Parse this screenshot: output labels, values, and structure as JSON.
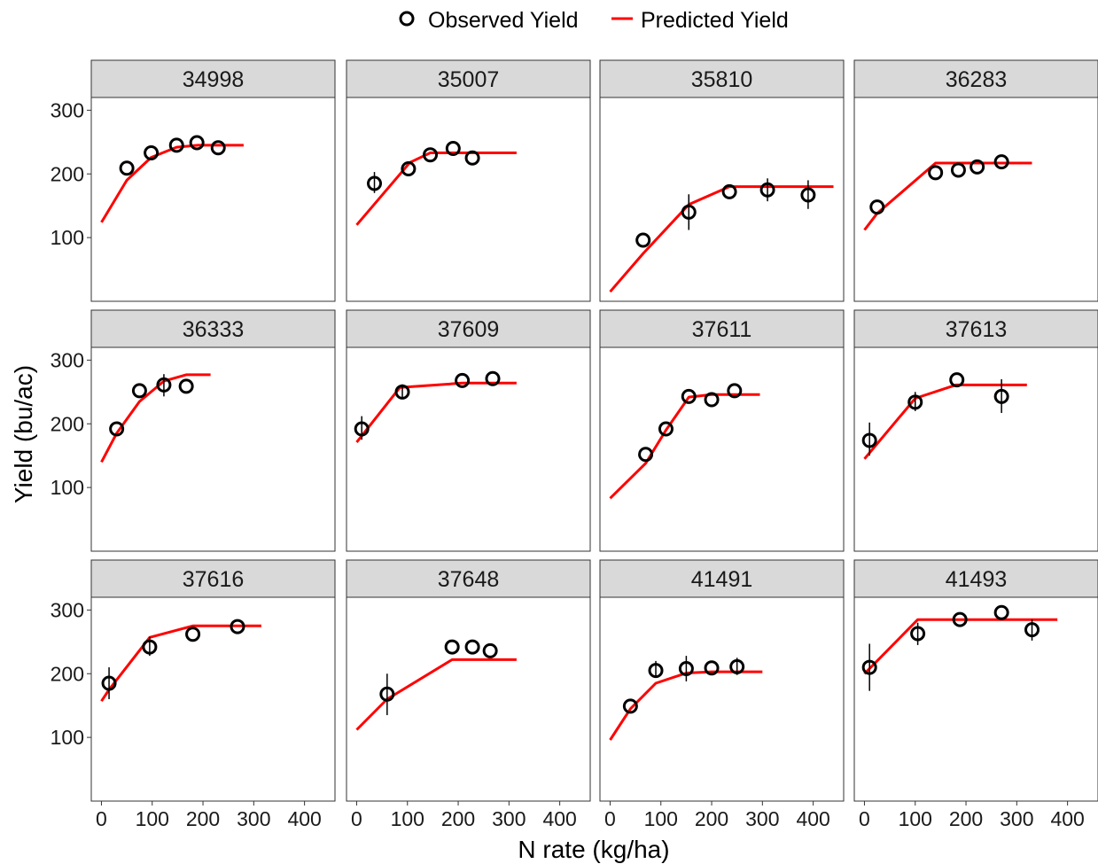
{
  "chart_data": {
    "type": "scatter",
    "xlabel": "N rate (kg/ha)",
    "ylabel": "Yield (bu/ac)",
    "xlim": [
      -20,
      460
    ],
    "ylim": [
      0,
      320
    ],
    "x_ticks": [
      0,
      100,
      200,
      300,
      400
    ],
    "y_ticks": [
      100,
      200,
      300
    ],
    "grid": false,
    "legend": {
      "position": "top",
      "entries": [
        {
          "label": "Observed Yield",
          "marker": "open-circle",
          "color": "#000000"
        },
        {
          "label": "Predicted Yield",
          "marker": "line",
          "color": "#ff0000"
        }
      ]
    },
    "panels": [
      {
        "id": "34998",
        "observed": [
          {
            "x": 50,
            "y": 209
          },
          {
            "x": 98,
            "y": 233
          },
          {
            "x": 148,
            "y": 245
          },
          {
            "x": 188,
            "y": 249
          },
          {
            "x": 230,
            "y": 241
          }
        ],
        "errors": [],
        "predicted": [
          {
            "x": 0,
            "y": 124
          },
          {
            "x": 50,
            "y": 190
          },
          {
            "x": 98,
            "y": 226
          },
          {
            "x": 148,
            "y": 242
          },
          {
            "x": 190,
            "y": 245
          },
          {
            "x": 280,
            "y": 245
          }
        ]
      },
      {
        "id": "35007",
        "observed": [
          {
            "x": 35,
            "y": 185
          },
          {
            "x": 102,
            "y": 208
          },
          {
            "x": 145,
            "y": 230
          },
          {
            "x": 190,
            "y": 240
          },
          {
            "x": 228,
            "y": 225
          }
        ],
        "errors": [
          {
            "x": 35,
            "lo": 170,
            "hi": 203
          }
        ],
        "predicted": [
          {
            "x": 0,
            "y": 120
          },
          {
            "x": 105,
            "y": 218
          },
          {
            "x": 145,
            "y": 233
          },
          {
            "x": 315,
            "y": 233
          }
        ]
      },
      {
        "id": "35810",
        "observed": [
          {
            "x": 65,
            "y": 96
          },
          {
            "x": 155,
            "y": 140
          },
          {
            "x": 235,
            "y": 172
          },
          {
            "x": 310,
            "y": 175
          },
          {
            "x": 390,
            "y": 167
          }
        ],
        "errors": [
          {
            "x": 155,
            "lo": 112,
            "hi": 168
          },
          {
            "x": 310,
            "lo": 157,
            "hi": 193
          },
          {
            "x": 390,
            "lo": 145,
            "hi": 190
          }
        ],
        "predicted": [
          {
            "x": 0,
            "y": 15
          },
          {
            "x": 65,
            "y": 75
          },
          {
            "x": 155,
            "y": 152
          },
          {
            "x": 235,
            "y": 180
          },
          {
            "x": 440,
            "y": 180
          }
        ]
      },
      {
        "id": "36283",
        "observed": [
          {
            "x": 25,
            "y": 148
          },
          {
            "x": 140,
            "y": 202
          },
          {
            "x": 185,
            "y": 206
          },
          {
            "x": 222,
            "y": 211
          },
          {
            "x": 270,
            "y": 219
          }
        ],
        "errors": [],
        "predicted": [
          {
            "x": 0,
            "y": 112
          },
          {
            "x": 25,
            "y": 138
          },
          {
            "x": 140,
            "y": 217
          },
          {
            "x": 330,
            "y": 217
          }
        ]
      },
      {
        "id": "36333",
        "observed": [
          {
            "x": 30,
            "y": 192
          },
          {
            "x": 75,
            "y": 252
          },
          {
            "x": 123,
            "y": 261
          },
          {
            "x": 167,
            "y": 259
          }
        ],
        "errors": [
          {
            "x": 123,
            "lo": 243,
            "hi": 278
          }
        ],
        "predicted": [
          {
            "x": 0,
            "y": 140
          },
          {
            "x": 30,
            "y": 185
          },
          {
            "x": 75,
            "y": 235
          },
          {
            "x": 123,
            "y": 267
          },
          {
            "x": 167,
            "y": 277
          },
          {
            "x": 215,
            "y": 277
          }
        ]
      },
      {
        "id": "37609",
        "observed": [
          {
            "x": 10,
            "y": 192
          },
          {
            "x": 90,
            "y": 250
          },
          {
            "x": 208,
            "y": 268
          },
          {
            "x": 268,
            "y": 271
          }
        ],
        "errors": [
          {
            "x": 10,
            "lo": 175,
            "hi": 212
          },
          {
            "x": 90,
            "lo": 240,
            "hi": 262
          }
        ],
        "predicted": [
          {
            "x": 0,
            "y": 171
          },
          {
            "x": 85,
            "y": 257
          },
          {
            "x": 208,
            "y": 264
          },
          {
            "x": 315,
            "y": 264
          }
        ]
      },
      {
        "id": "37611",
        "observed": [
          {
            "x": 70,
            "y": 152
          },
          {
            "x": 110,
            "y": 192
          },
          {
            "x": 155,
            "y": 243
          },
          {
            "x": 200,
            "y": 238
          },
          {
            "x": 245,
            "y": 252
          }
        ],
        "errors": [],
        "predicted": [
          {
            "x": 0,
            "y": 83
          },
          {
            "x": 70,
            "y": 138
          },
          {
            "x": 110,
            "y": 190
          },
          {
            "x": 155,
            "y": 242
          },
          {
            "x": 200,
            "y": 246
          },
          {
            "x": 295,
            "y": 246
          }
        ]
      },
      {
        "id": "37613",
        "observed": [
          {
            "x": 10,
            "y": 174
          },
          {
            "x": 100,
            "y": 234
          },
          {
            "x": 182,
            "y": 269
          },
          {
            "x": 270,
            "y": 243
          }
        ],
        "errors": [
          {
            "x": 10,
            "lo": 150,
            "hi": 202
          },
          {
            "x": 100,
            "lo": 220,
            "hi": 250
          },
          {
            "x": 270,
            "lo": 217,
            "hi": 270
          }
        ],
        "predicted": [
          {
            "x": 0,
            "y": 145
          },
          {
            "x": 100,
            "y": 240
          },
          {
            "x": 180,
            "y": 261
          },
          {
            "x": 320,
            "y": 261
          }
        ]
      },
      {
        "id": "37616",
        "observed": [
          {
            "x": 15,
            "y": 185
          },
          {
            "x": 95,
            "y": 242
          },
          {
            "x": 180,
            "y": 262
          },
          {
            "x": 268,
            "y": 274
          }
        ],
        "errors": [
          {
            "x": 15,
            "lo": 160,
            "hi": 210
          },
          {
            "x": 95,
            "lo": 228,
            "hi": 258
          }
        ],
        "predicted": [
          {
            "x": 0,
            "y": 157
          },
          {
            "x": 15,
            "y": 175
          },
          {
            "x": 95,
            "y": 257
          },
          {
            "x": 180,
            "y": 275
          },
          {
            "x": 315,
            "y": 275
          }
        ]
      },
      {
        "id": "37648",
        "observed": [
          {
            "x": 60,
            "y": 168
          },
          {
            "x": 188,
            "y": 242
          },
          {
            "x": 228,
            "y": 242
          },
          {
            "x": 263,
            "y": 236
          }
        ],
        "errors": [
          {
            "x": 60,
            "lo": 135,
            "hi": 200
          }
        ],
        "predicted": [
          {
            "x": 0,
            "y": 112
          },
          {
            "x": 60,
            "y": 160
          },
          {
            "x": 188,
            "y": 222
          },
          {
            "x": 315,
            "y": 222
          }
        ]
      },
      {
        "id": "41491",
        "observed": [
          {
            "x": 40,
            "y": 149
          },
          {
            "x": 90,
            "y": 205
          },
          {
            "x": 150,
            "y": 208
          },
          {
            "x": 200,
            "y": 209
          },
          {
            "x": 250,
            "y": 211
          }
        ],
        "errors": [
          {
            "x": 90,
            "lo": 195,
            "hi": 220
          },
          {
            "x": 150,
            "lo": 188,
            "hi": 228
          },
          {
            "x": 250,
            "lo": 198,
            "hi": 225
          }
        ],
        "predicted": [
          {
            "x": 0,
            "y": 96
          },
          {
            "x": 40,
            "y": 145
          },
          {
            "x": 90,
            "y": 185
          },
          {
            "x": 150,
            "y": 201
          },
          {
            "x": 200,
            "y": 203
          },
          {
            "x": 300,
            "y": 203
          }
        ]
      },
      {
        "id": "41493",
        "observed": [
          {
            "x": 10,
            "y": 210
          },
          {
            "x": 105,
            "y": 263
          },
          {
            "x": 188,
            "y": 285
          },
          {
            "x": 270,
            "y": 296
          },
          {
            "x": 330,
            "y": 269
          }
        ],
        "errors": [
          {
            "x": 10,
            "lo": 173,
            "hi": 247
          },
          {
            "x": 105,
            "lo": 245,
            "hi": 280
          },
          {
            "x": 330,
            "lo": 252,
            "hi": 285
          }
        ],
        "predicted": [
          {
            "x": 0,
            "y": 200
          },
          {
            "x": 105,
            "y": 285
          },
          {
            "x": 380,
            "y": 285
          }
        ]
      }
    ]
  }
}
